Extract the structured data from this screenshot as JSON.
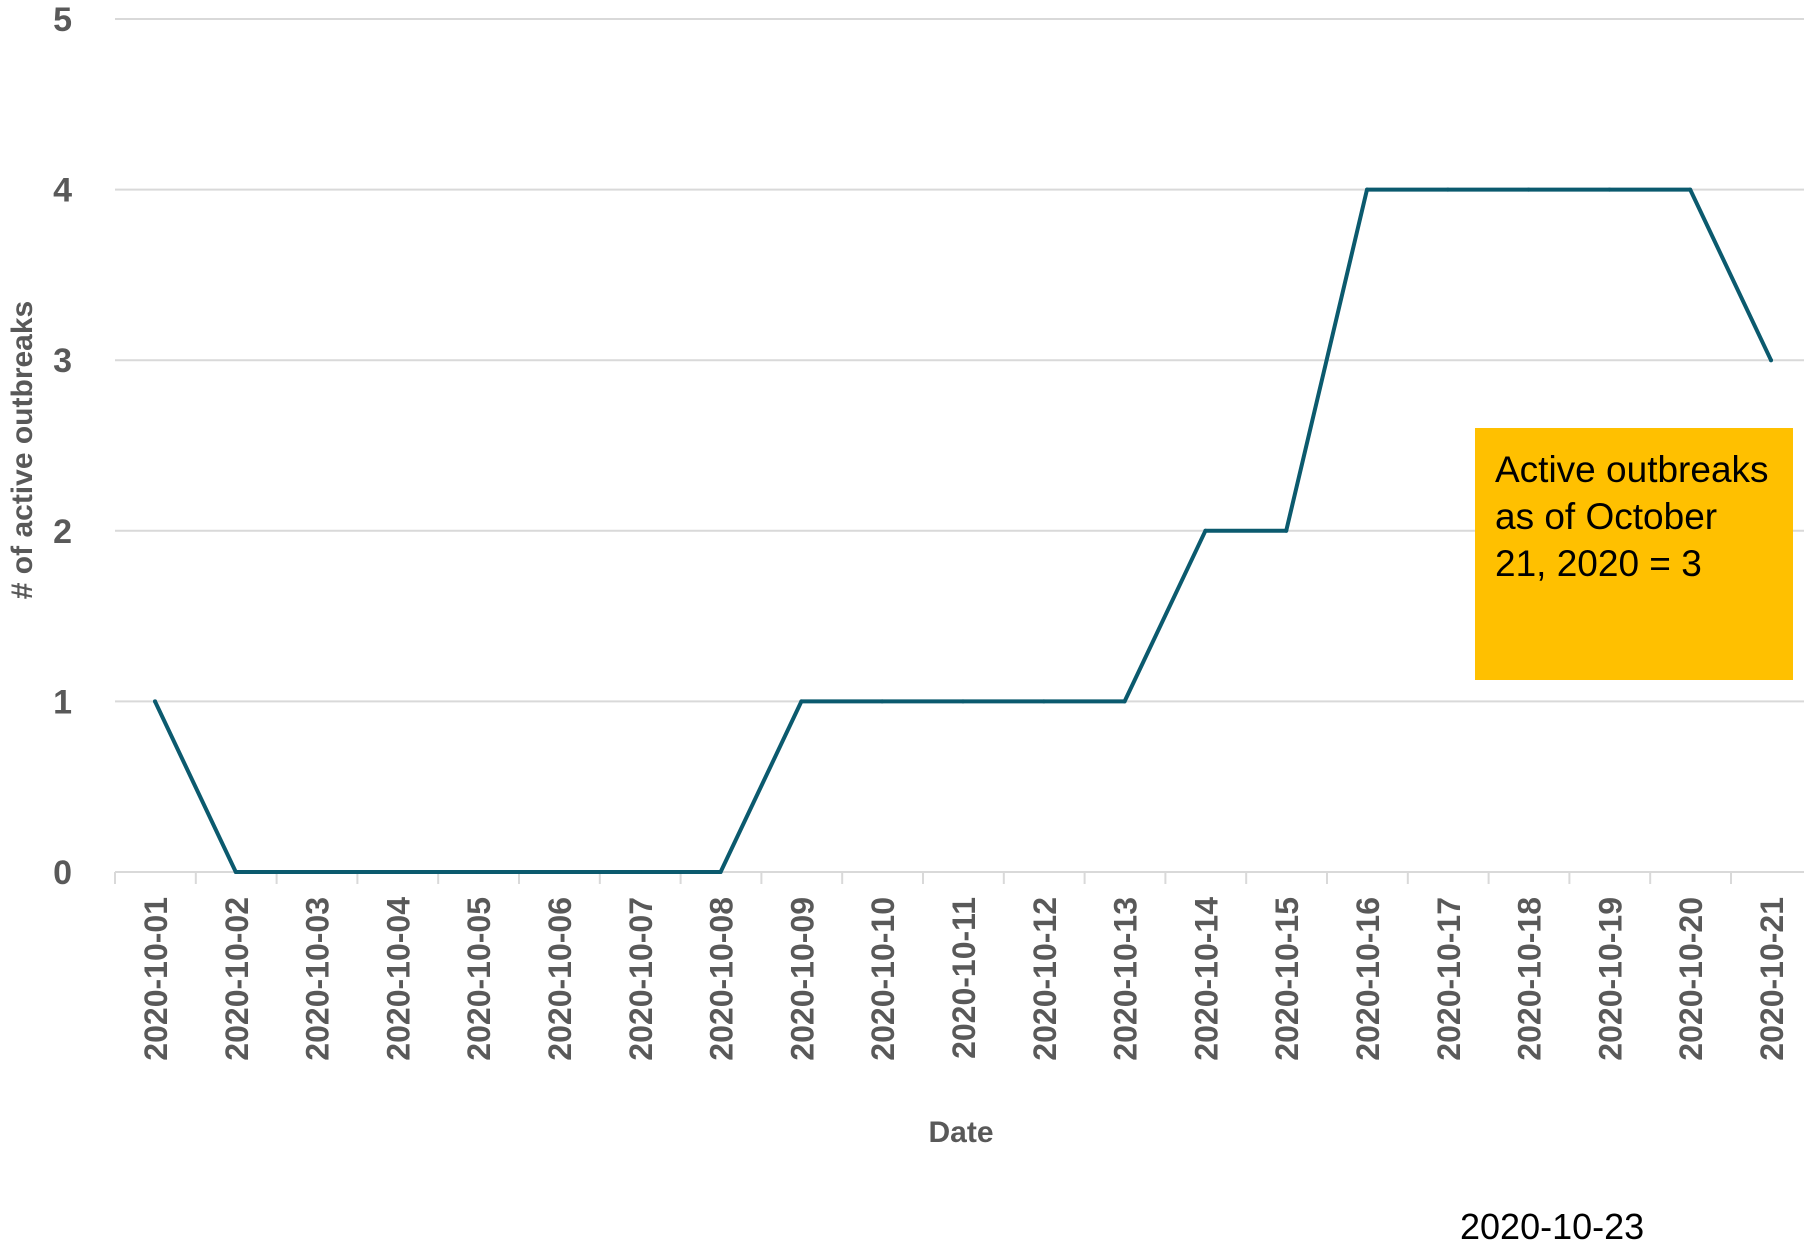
{
  "chart_data": {
    "type": "line",
    "xlabel": "Date",
    "ylabel": "# of active outbreaks",
    "ylim": [
      0,
      5
    ],
    "yticks": [
      "0",
      "1",
      "2",
      "3",
      "4",
      "5"
    ],
    "grid": true,
    "line_color": "#0b5a6e",
    "categories": [
      "2020-10-01",
      "2020-10-02",
      "2020-10-03",
      "2020-10-04",
      "2020-10-05",
      "2020-10-06",
      "2020-10-07",
      "2020-10-08",
      "2020-10-09",
      "2020-10-10",
      "2020-10-11",
      "2020-10-12",
      "2020-10-13",
      "2020-10-14",
      "2020-10-15",
      "2020-10-16",
      "2020-10-17",
      "2020-10-18",
      "2020-10-19",
      "2020-10-20",
      "2020-10-21"
    ],
    "series": [
      {
        "values": [
          1,
          0,
          0,
          0,
          0,
          0,
          0,
          0,
          1,
          1,
          1,
          1,
          1,
          2,
          2,
          4,
          4,
          4,
          4,
          4,
          3
        ]
      }
    ]
  },
  "annotation": {
    "text": "Active outbreaks as of October 21, 2020 = 3",
    "color": "#ffc000"
  },
  "footer_date": "2020-10-23"
}
